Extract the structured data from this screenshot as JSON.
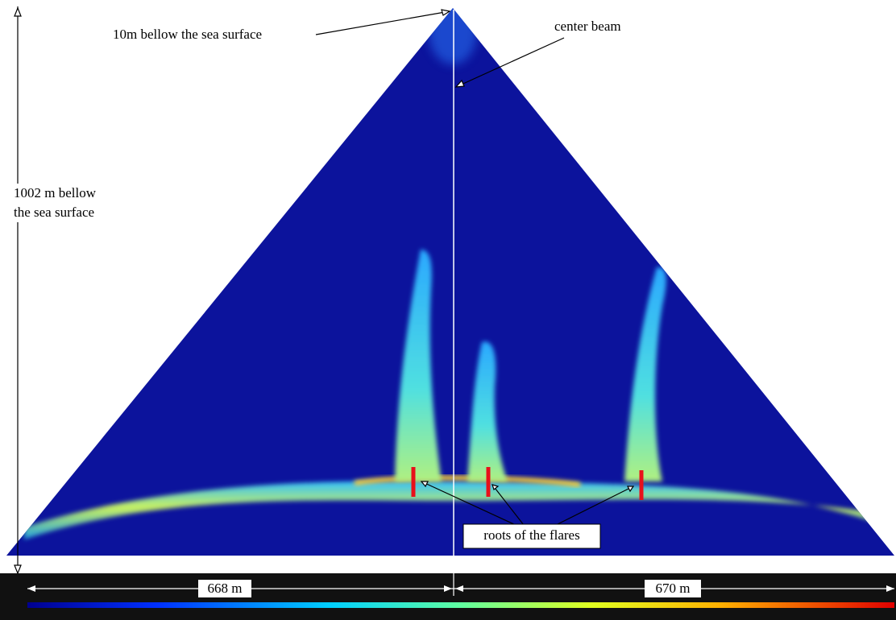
{
  "annotations": {
    "surface_point": "10m bellow the sea surface",
    "center_beam": "center beam",
    "depth_line1": "1002 m bellow",
    "depth_line2": "the sea surface",
    "flare_roots": "roots of the flares"
  },
  "scale": {
    "left_width": "668 m",
    "right_width": "670 m"
  }
}
